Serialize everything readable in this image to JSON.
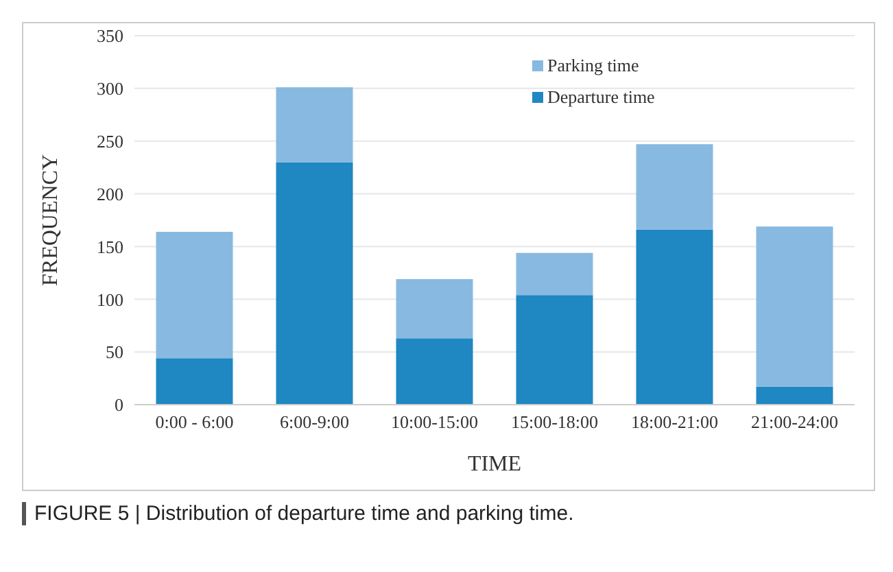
{
  "chart_data": {
    "type": "bar",
    "stacked": true,
    "xlabel": "TIME",
    "ylabel": "FREQUENCY",
    "categories": [
      "0:00 - 6:00",
      "6:00-9:00",
      "10:00-15:00",
      "15:00-18:00",
      "18:00-21:00",
      "21:00-24:00"
    ],
    "series": [
      {
        "name": "Departure time",
        "color": "#1f87c2",
        "values": [
          44,
          230,
          63,
          104,
          166,
          17
        ]
      },
      {
        "name": "Parking time",
        "color": "#88b9e0",
        "values": [
          120,
          71,
          56,
          40,
          81,
          152
        ]
      }
    ],
    "ylim": [
      0,
      350
    ],
    "yticks": [
      0,
      50,
      100,
      150,
      200,
      250,
      300,
      350
    ],
    "grid": "y",
    "legend": "top",
    "annotations": [
      "FIGURE 5 | Distribution of departure time and parking time."
    ]
  }
}
